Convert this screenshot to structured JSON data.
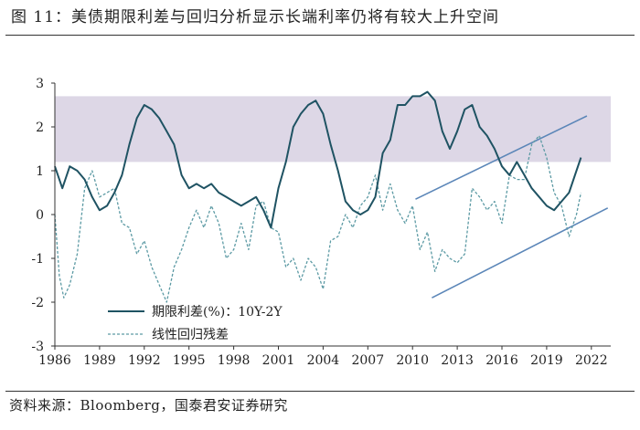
{
  "header": {
    "title": "图 11：美债期限利差与回归分析显示长端利率仍将有较大上升空间"
  },
  "footer": {
    "source": "资料来源：Bloomberg，国泰君安证券研究"
  },
  "chart_data": {
    "type": "line",
    "title": "图 11：美债期限利差与回归分析显示长端利率仍将有较大上升空间",
    "xlabel": "",
    "ylabel": "",
    "xlim": [
      1986,
      2023.3
    ],
    "ylim": [
      -3,
      3
    ],
    "x_ticks": [
      "1986",
      "1989",
      "1992",
      "1995",
      "1998",
      "2001",
      "2004",
      "2007",
      "2010",
      "2013",
      "2016",
      "2019",
      "2022"
    ],
    "y_ticks": [
      "-3",
      "-2",
      "-1",
      "0",
      "1",
      "2",
      "3"
    ],
    "grid": false,
    "legend_position": "bottom-left",
    "band": {
      "from": 1.2,
      "to": 2.7,
      "color": "#ddd7e6"
    },
    "trend_lines": [
      {
        "x": [
          2010.2,
          2021.7
        ],
        "y": [
          0.35,
          2.25
        ],
        "color": "#5b86b8"
      },
      {
        "x": [
          2011.3,
          2023.1
        ],
        "y": [
          -1.9,
          0.15
        ],
        "color": "#5b86b8"
      }
    ],
    "series": [
      {
        "name": "期限利差(%)：10Y-2Y",
        "style": "solid",
        "color": "#1f5363",
        "x": [
          1986.0,
          1986.5,
          1987.0,
          1987.5,
          1988.0,
          1988.5,
          1989.0,
          1989.5,
          1990.0,
          1990.5,
          1991.0,
          1991.5,
          1992.0,
          1992.5,
          1993.0,
          1993.5,
          1994.0,
          1994.5,
          1995.0,
          1995.5,
          1996.0,
          1996.5,
          1997.0,
          1997.5,
          1998.0,
          1998.5,
          1999.0,
          1999.5,
          2000.0,
          2000.5,
          2001.0,
          2001.5,
          2002.0,
          2002.5,
          2003.0,
          2003.5,
          2004.0,
          2004.5,
          2005.0,
          2005.5,
          2006.0,
          2006.5,
          2007.0,
          2007.5,
          2008.0,
          2008.5,
          2009.0,
          2009.5,
          2010.0,
          2010.5,
          2011.0,
          2011.5,
          2012.0,
          2012.5,
          2013.0,
          2013.5,
          2014.0,
          2014.5,
          2015.0,
          2015.5,
          2016.0,
          2016.5,
          2017.0,
          2017.5,
          2018.0,
          2018.5,
          2019.0,
          2019.5,
          2020.0,
          2020.5,
          2021.0,
          2021.3
        ],
        "values": [
          1.1,
          0.6,
          1.1,
          1.0,
          0.8,
          0.4,
          0.1,
          0.2,
          0.5,
          0.9,
          1.6,
          2.2,
          2.5,
          2.4,
          2.2,
          1.9,
          1.6,
          0.9,
          0.6,
          0.7,
          0.6,
          0.7,
          0.5,
          0.4,
          0.3,
          0.2,
          0.3,
          0.4,
          0.1,
          -0.3,
          0.6,
          1.2,
          2.0,
          2.3,
          2.5,
          2.6,
          2.3,
          1.6,
          1.0,
          0.3,
          0.1,
          0.0,
          0.1,
          0.4,
          1.4,
          1.7,
          2.5,
          2.5,
          2.7,
          2.7,
          2.8,
          2.6,
          1.9,
          1.5,
          1.9,
          2.4,
          2.5,
          2.0,
          1.8,
          1.5,
          1.1,
          0.9,
          1.2,
          0.9,
          0.6,
          0.4,
          0.2,
          0.1,
          0.3,
          0.5,
          1.0,
          1.3
        ]
      },
      {
        "name": "线性回归残差",
        "style": "dashed",
        "color": "#5c9aa4",
        "x": [
          1986.0,
          1986.3,
          1986.6,
          1987.0,
          1987.5,
          1988.0,
          1988.5,
          1989.0,
          1989.5,
          1990.0,
          1990.5,
          1991.0,
          1991.5,
          1992.0,
          1992.5,
          1993.0,
          1993.5,
          1994.0,
          1994.5,
          1995.0,
          1995.5,
          1996.0,
          1996.5,
          1997.0,
          1997.5,
          1998.0,
          1998.5,
          1999.0,
          1999.5,
          2000.0,
          2000.5,
          2001.0,
          2001.5,
          2002.0,
          2002.5,
          2003.0,
          2003.5,
          2004.0,
          2004.5,
          2005.0,
          2005.5,
          2006.0,
          2006.5,
          2007.0,
          2007.5,
          2008.0,
          2008.5,
          2009.0,
          2009.5,
          2010.0,
          2010.5,
          2011.0,
          2011.5,
          2012.0,
          2012.5,
          2013.0,
          2013.5,
          2014.0,
          2014.5,
          2015.0,
          2015.5,
          2016.0,
          2016.5,
          2017.0,
          2017.5,
          2018.0,
          2018.5,
          2019.0,
          2019.5,
          2020.0,
          2020.5,
          2021.0,
          2021.3
        ],
        "values": [
          0.0,
          -1.4,
          -1.9,
          -1.6,
          -0.9,
          0.6,
          1.0,
          0.4,
          0.5,
          0.6,
          -0.2,
          -0.3,
          -0.9,
          -0.6,
          -1.2,
          -1.6,
          -2.0,
          -1.2,
          -0.8,
          -0.3,
          0.1,
          -0.3,
          0.2,
          -0.2,
          -1.0,
          -0.8,
          -0.2,
          -0.8,
          0.2,
          0.3,
          -0.3,
          -0.4,
          -1.2,
          -1.0,
          -1.5,
          -1.0,
          -1.2,
          -1.7,
          -0.6,
          -0.5,
          0.0,
          -0.3,
          0.2,
          0.4,
          0.9,
          0.1,
          0.7,
          0.1,
          -0.2,
          0.2,
          -0.8,
          -0.4,
          -1.3,
          -0.8,
          -1.0,
          -1.1,
          -0.9,
          0.6,
          0.4,
          0.1,
          0.3,
          -0.2,
          0.9,
          0.8,
          0.8,
          1.6,
          1.8,
          1.3,
          0.5,
          0.2,
          -0.5,
          0.0,
          0.5
        ]
      }
    ]
  }
}
